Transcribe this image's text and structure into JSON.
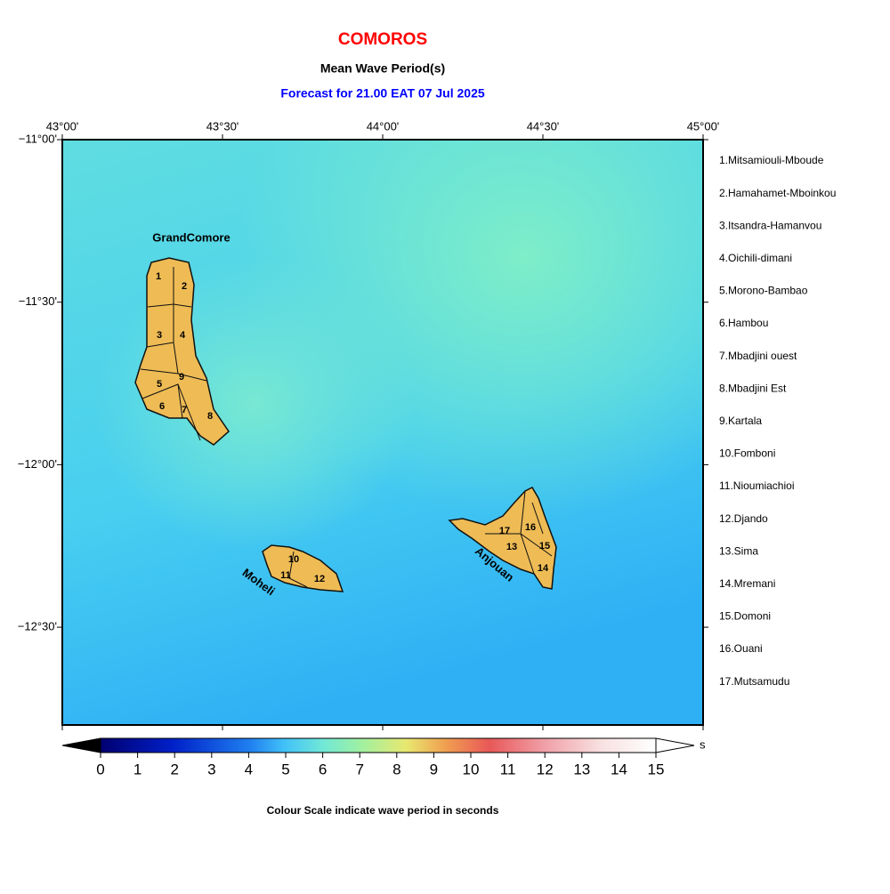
{
  "header": {
    "title": "COMOROS",
    "subtitle": "Mean Wave Period(s)",
    "forecast": "Forecast for  21.00 EAT 07 Jul 2025"
  },
  "map": {
    "lon_ticks": [
      "43°00'",
      "43°30'",
      "44°00'",
      "44°30'",
      "45°00'"
    ],
    "lat_ticks": [
      "−11°00'",
      "−11°30'",
      "−12°00'",
      "−12°30'"
    ],
    "islands": [
      "GrandComore",
      "Moheli",
      "Anjouan"
    ],
    "region_labels": [
      "1",
      "2",
      "3",
      "4",
      "5",
      "6",
      "7",
      "8",
      "9",
      "10",
      "11",
      "12",
      "13",
      "14",
      "15",
      "16",
      "17"
    ]
  },
  "legend": {
    "regions": [
      "1.Mitsamiouli-Mboude",
      "2.Hamahamet-Mboinkou",
      "3.Itsandra-Hamanvou",
      "4.Oichili-dimani",
      "5.Morono-Bambao",
      "6.Hambou",
      "7.Mbadjini ouest",
      "8.Mbadjini Est",
      "9.Kartala",
      "10.Fomboni",
      "11.Nioumiachioi",
      "12.Djando",
      "13.Sima",
      "14.Mremani",
      "15.Domoni",
      "16.Ouani",
      "17.Mutsamudu"
    ]
  },
  "colorbar": {
    "ticks": [
      0,
      1,
      2,
      3,
      4,
      5,
      6,
      7,
      8,
      9,
      10,
      11,
      12,
      13,
      14,
      15
    ],
    "unit": "s",
    "caption": "Colour Scale indicate wave period in seconds"
  }
}
